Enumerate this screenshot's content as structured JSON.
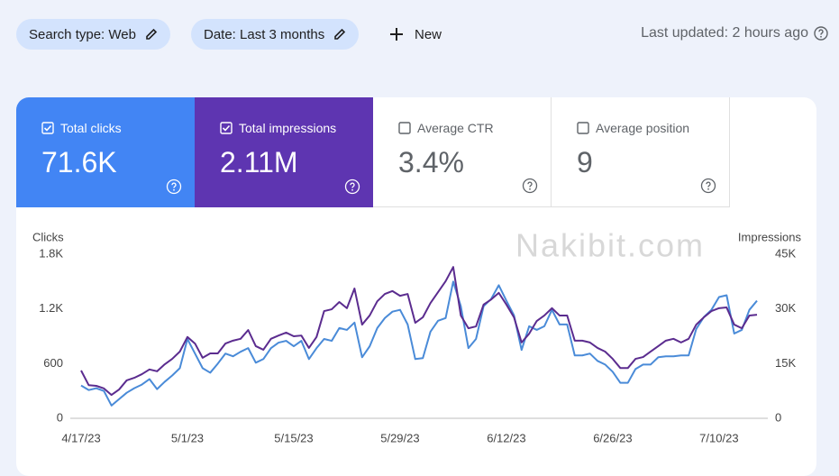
{
  "toolbar": {
    "filters": [
      "Search type: Web",
      "Date: Last 3 months"
    ],
    "new_button": "New",
    "last_updated": "Last updated: 2 hours ago"
  },
  "cards": [
    {
      "label": "Total clicks",
      "value": "71.6K"
    },
    {
      "label": "Total impressions",
      "value": "2.11M"
    },
    {
      "label": "Average CTR",
      "value": "3.4%"
    },
    {
      "label": "Average position",
      "value": "9"
    }
  ],
  "watermark": "Nakibit.com",
  "chart_data": {
    "type": "line",
    "y_label": "Clicks",
    "y2_label": "Impressions",
    "x": [
      "4/17/23",
      "4/18/23",
      "4/19/23",
      "4/20/23",
      "4/21/23",
      "4/22/23",
      "4/23/23",
      "4/24/23",
      "4/25/23",
      "4/26/23",
      "4/27/23",
      "4/28/23",
      "4/29/23",
      "4/30/23",
      "5/1/23",
      "5/2/23",
      "5/3/23",
      "5/4/23",
      "5/5/23",
      "5/6/23",
      "5/7/23",
      "5/8/23",
      "5/9/23",
      "5/10/23",
      "5/11/23",
      "5/12/23",
      "5/13/23",
      "5/14/23",
      "5/15/23",
      "5/16/23",
      "5/17/23",
      "5/18/23",
      "5/19/23",
      "5/20/23",
      "5/21/23",
      "5/22/23",
      "5/23/23",
      "5/24/23",
      "5/25/23",
      "5/26/23",
      "5/27/23",
      "5/28/23",
      "5/29/23",
      "5/30/23",
      "5/31/23",
      "6/1/23",
      "6/2/23",
      "6/3/23",
      "6/4/23",
      "6/5/23",
      "6/6/23",
      "6/7/23",
      "6/8/23",
      "6/9/23",
      "6/10/23",
      "6/11/23",
      "6/12/23",
      "6/13/23",
      "6/14/23",
      "6/15/23",
      "6/16/23",
      "6/17/23",
      "6/18/23",
      "6/19/23",
      "6/20/23",
      "6/21/23",
      "6/22/23",
      "6/23/23",
      "6/24/23",
      "6/25/23",
      "6/26/23",
      "6/27/23",
      "6/28/23",
      "6/29/23",
      "6/30/23",
      "7/1/23",
      "7/2/23",
      "7/3/23",
      "7/4/23",
      "7/5/23",
      "7/6/23",
      "7/7/23",
      "7/8/23",
      "7/9/23",
      "7/10/23",
      "7/11/23",
      "7/12/23",
      "7/13/23",
      "7/14/23",
      "7/15/23"
    ],
    "xticks": [
      "4/17/23",
      "5/1/23",
      "5/15/23",
      "5/29/23",
      "6/12/23",
      "6/26/23",
      "7/10/23"
    ],
    "ylim": [
      0,
      1800
    ],
    "yticks": [
      0,
      600,
      {
        "value": 1200,
        "label": "1.2K"
      },
      {
        "value": 1800,
        "label": "1.8K"
      }
    ],
    "y2lim": [
      0,
      45000
    ],
    "y2ticks": [
      0,
      {
        "value": 15000,
        "label": "15K"
      },
      {
        "value": 30000,
        "label": "30K"
      },
      {
        "value": 45000,
        "label": "45K"
      }
    ],
    "grid": false,
    "series": [
      {
        "name": "Clicks",
        "color": "#4a8bd8",
        "values": [
          360,
          310,
          330,
          300,
          140,
          210,
          280,
          330,
          370,
          430,
          320,
          400,
          470,
          550,
          870,
          710,
          550,
          500,
          600,
          710,
          680,
          730,
          770,
          610,
          650,
          770,
          830,
          850,
          790,
          850,
          650,
          770,
          870,
          850,
          990,
          970,
          1050,
          670,
          790,
          990,
          1100,
          1170,
          1190,
          1030,
          650,
          660,
          950,
          1070,
          1100,
          1500,
          1230,
          770,
          870,
          1230,
          1310,
          1460,
          1290,
          1130,
          750,
          1010,
          970,
          1010,
          1190,
          1030,
          1030,
          690,
          690,
          710,
          630,
          590,
          510,
          390,
          390,
          540,
          590,
          590,
          670,
          680,
          680,
          690,
          690,
          980,
          1110,
          1190,
          1330,
          1350,
          930,
          970,
          1190,
          1290
        ]
      },
      {
        "name": "Impressions",
        "color": "#5b2c8f",
        "axis": "y2",
        "values": [
          13100,
          9100,
          8900,
          8200,
          6400,
          7900,
          10400,
          11100,
          12100,
          13400,
          12900,
          14800,
          16300,
          18300,
          22300,
          20500,
          16600,
          17800,
          17800,
          20500,
          21300,
          21800,
          24200,
          19800,
          18800,
          21800,
          22700,
          23500,
          22500,
          22700,
          19300,
          22300,
          29400,
          29900,
          31900,
          30200,
          35600,
          25700,
          28200,
          32100,
          34100,
          34900,
          33600,
          34100,
          26200,
          27700,
          31600,
          34600,
          37600,
          41500,
          28200,
          24700,
          25200,
          31200,
          32600,
          34400,
          31200,
          27700,
          20800,
          23200,
          26700,
          28200,
          30200,
          28200,
          28200,
          21300,
          21300,
          20800,
          19300,
          18300,
          16300,
          13800,
          13800,
          16300,
          16800,
          18300,
          19800,
          21300,
          21800,
          20800,
          21800,
          25700,
          27700,
          29400,
          30200,
          30400,
          25700,
          24700,
          28200,
          28400
        ]
      }
    ]
  }
}
